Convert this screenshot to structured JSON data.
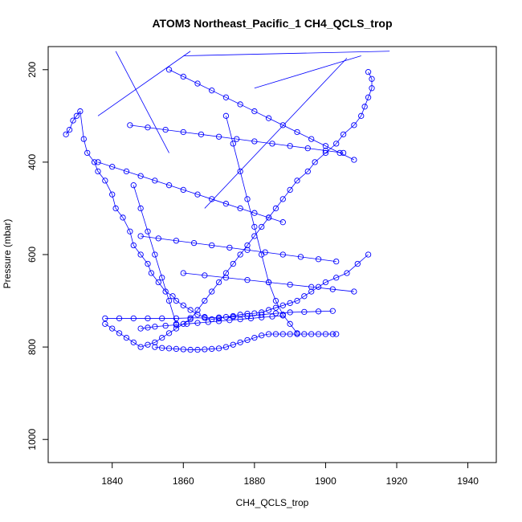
{
  "chart_data": {
    "type": "scatter",
    "title": "ATOM3 Northeast_Pacific_1 CH4_QCLS_trop",
    "xlabel": "CH4_QCLS_trop",
    "ylabel": "Pressure (mbar)",
    "xlim": [
      1822,
      1948
    ],
    "ylim": [
      1050,
      150
    ],
    "y_reversed": true,
    "xticks": [
      1840,
      1860,
      1880,
      1900,
      1920,
      1940
    ],
    "yticks": [
      200,
      400,
      600,
      800,
      1000
    ],
    "grid": false,
    "legend": "none",
    "color": "#0000ff",
    "series": [
      {
        "x": [
          1827,
          1828,
          1829,
          1830,
          1831,
          1832,
          1833,
          1835,
          1836,
          1838,
          1840,
          1841,
          1843,
          1845,
          1846,
          1848,
          1850,
          1851,
          1853,
          1855,
          1857,
          1858,
          1860,
          1862,
          1864,
          1866,
          1868,
          1870,
          1872,
          1874,
          1876,
          1878,
          1880,
          1882,
          1884,
          1886,
          1888,
          1890,
          1892,
          1894,
          1896,
          1898,
          1900,
          1903,
          1906,
          1909,
          1912
        ],
        "y": [
          340,
          330,
          310,
          300,
          290,
          350,
          380,
          400,
          420,
          440,
          470,
          500,
          520,
          550,
          580,
          600,
          620,
          640,
          660,
          680,
          690,
          700,
          710,
          720,
          730,
          735,
          740,
          738,
          735,
          733,
          730,
          728,
          727,
          725,
          720,
          715,
          710,
          705,
          700,
          690,
          680,
          670,
          660,
          650,
          640,
          620,
          600
        ]
      },
      {
        "x": [
          1912,
          1913,
          1913,
          1912,
          1911,
          1910,
          1908,
          1905,
          1903,
          1900,
          1897,
          1895,
          1892,
          1890,
          1888,
          1886,
          1884,
          1882,
          1880,
          1878,
          1876,
          1874,
          1872,
          1870,
          1868,
          1866,
          1864,
          1862,
          1860,
          1858,
          1856,
          1854,
          1852,
          1850,
          1848,
          1846,
          1844,
          1842,
          1840,
          1838
        ],
        "y": [
          205,
          220,
          240,
          260,
          280,
          300,
          320,
          340,
          360,
          380,
          400,
          420,
          440,
          460,
          480,
          500,
          520,
          540,
          560,
          580,
          600,
          620,
          640,
          660,
          680,
          700,
          720,
          740,
          750,
          760,
          770,
          780,
          790,
          795,
          800,
          790,
          780,
          770,
          760,
          750
        ]
      },
      {
        "x": [
          1838,
          1842,
          1846,
          1850,
          1854,
          1858,
          1862,
          1866,
          1870,
          1874,
          1878,
          1882,
          1886,
          1890,
          1894,
          1898,
          1902
        ],
        "y": [
          738,
          738,
          738,
          738,
          738,
          738,
          737,
          737,
          736,
          735,
          733,
          730,
          727,
          725,
          724,
          723,
          722
        ]
      },
      {
        "x": [
          1852,
          1854,
          1856,
          1858,
          1860,
          1862,
          1864,
          1866,
          1868,
          1870,
          1872,
          1874,
          1876,
          1878,
          1880,
          1882,
          1884,
          1886,
          1888,
          1890,
          1892,
          1894,
          1896,
          1898,
          1900,
          1902,
          1903
        ],
        "y": [
          800,
          802,
          803,
          804,
          805,
          806,
          806,
          805,
          804,
          803,
          800,
          795,
          790,
          785,
          780,
          775,
          772,
          772,
          772,
          772,
          772,
          772,
          772,
          772,
          772,
          772,
          772
        ]
      },
      {
        "x": [
          1848,
          1850,
          1852,
          1855,
          1858,
          1861,
          1864,
          1867,
          1870,
          1873,
          1876,
          1879,
          1882,
          1885,
          1888
        ],
        "y": [
          760,
          758,
          756,
          754,
          752,
          750,
          748,
          746,
          744,
          742,
          740,
          738,
          736,
          734,
          732
        ]
      },
      {
        "x": [
          1836,
          1840,
          1844,
          1848,
          1852,
          1856,
          1860,
          1864,
          1868,
          1872,
          1876,
          1880,
          1884,
          1888
        ],
        "y": [
          400,
          410,
          420,
          430,
          440,
          450,
          460,
          470,
          480,
          490,
          500,
          510,
          520,
          530
        ]
      },
      {
        "x": [
          1845,
          1850,
          1855,
          1860,
          1865,
          1870,
          1875,
          1880,
          1885,
          1890,
          1895,
          1900,
          1905
        ],
        "y": [
          320,
          325,
          330,
          335,
          340,
          345,
          350,
          355,
          360,
          365,
          370,
          375,
          380
        ]
      },
      {
        "x": [
          1848,
          1853,
          1858,
          1863,
          1868,
          1873,
          1878,
          1883,
          1888,
          1893,
          1898,
          1903
        ],
        "y": [
          560,
          565,
          570,
          575,
          580,
          585,
          590,
          595,
          600,
          605,
          610,
          615
        ]
      },
      {
        "x": [
          1860,
          1866,
          1872,
          1878,
          1884,
          1890,
          1896,
          1902,
          1908
        ],
        "y": [
          640,
          645,
          650,
          655,
          660,
          665,
          670,
          675,
          680
        ]
      },
      {
        "x": [
          1856,
          1860,
          1864,
          1868,
          1872,
          1876,
          1880,
          1884,
          1888,
          1892,
          1896,
          1900,
          1904,
          1908
        ],
        "y": [
          200,
          215,
          230,
          245,
          260,
          275,
          290,
          305,
          320,
          335,
          350,
          365,
          380,
          395
        ]
      },
      {
        "x": [
          1872,
          1874,
          1876,
          1878,
          1880,
          1882,
          1884,
          1886,
          1888,
          1890,
          1892
        ],
        "y": [
          300,
          360,
          420,
          480,
          540,
          600,
          660,
          700,
          730,
          750,
          770
        ]
      },
      {
        "x": [
          1846,
          1848,
          1850,
          1852,
          1854,
          1856,
          1858
        ],
        "y": [
          450,
          500,
          550,
          600,
          650,
          700,
          750
        ]
      }
    ],
    "stray_lines": [
      {
        "x": [
          1841,
          1856
        ],
        "y": [
          160,
          380
        ]
      },
      {
        "x": [
          1836,
          1862
        ],
        "y": [
          300,
          160
        ]
      },
      {
        "x": [
          1860,
          1918
        ],
        "y": [
          170,
          160
        ]
      },
      {
        "x": [
          1880,
          1910
        ],
        "y": [
          240,
          170
        ]
      },
      {
        "x": [
          1866,
          1906
        ],
        "y": [
          500,
          175
        ]
      }
    ]
  }
}
